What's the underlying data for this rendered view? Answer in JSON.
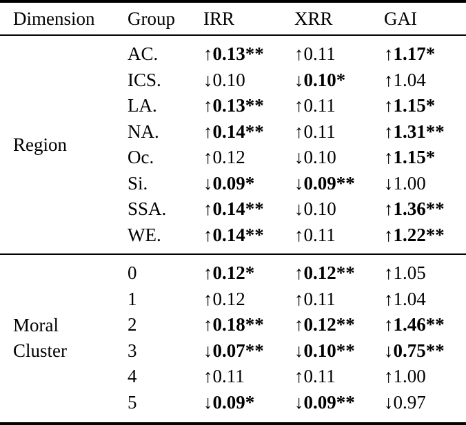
{
  "header": {
    "columns": [
      "Dimension",
      "Group",
      "IRR",
      "XRR",
      "GAI"
    ]
  },
  "sections": [
    {
      "dimension": "Region",
      "dimension_lines": {
        "0": "Region",
        "1": ""
      },
      "rows": [
        {
          "group": "AC.",
          "irr": {
            "arrow": "↑",
            "val": "0.13**",
            "weight": "bold"
          },
          "xrr": {
            "arrow": "↑",
            "val": "0.11",
            "weight": "normal"
          },
          "gai": {
            "arrow": "↑",
            "val": "1.17*",
            "weight": "bold"
          }
        },
        {
          "group": "ICS.",
          "irr": {
            "arrow": "↓",
            "val": "0.10",
            "weight": "normal"
          },
          "xrr": {
            "arrow": "↓",
            "val": "0.10*",
            "weight": "bold"
          },
          "gai": {
            "arrow": "↑",
            "val": "1.04",
            "weight": "normal"
          }
        },
        {
          "group": "LA.",
          "irr": {
            "arrow": "↑",
            "val": "0.13**",
            "weight": "bold"
          },
          "xrr": {
            "arrow": "↑",
            "val": "0.11",
            "weight": "normal"
          },
          "gai": {
            "arrow": "↑",
            "val": "1.15*",
            "weight": "bold"
          }
        },
        {
          "group": "NA.",
          "irr": {
            "arrow": "↑",
            "val": "0.14**",
            "weight": "bold"
          },
          "xrr": {
            "arrow": "↑",
            "val": "0.11",
            "weight": "normal"
          },
          "gai": {
            "arrow": "↑",
            "val": "1.31**",
            "weight": "bold"
          }
        },
        {
          "group": "Oc.",
          "irr": {
            "arrow": "↑",
            "val": "0.12",
            "weight": "normal"
          },
          "xrr": {
            "arrow": "↓",
            "val": "0.10",
            "weight": "normal"
          },
          "gai": {
            "arrow": "↑",
            "val": "1.15*",
            "weight": "bold"
          }
        },
        {
          "group": "Si.",
          "irr": {
            "arrow": "↓",
            "val": "0.09*",
            "weight": "bold"
          },
          "xrr": {
            "arrow": "↓",
            "val": "0.09**",
            "weight": "bold"
          },
          "gai": {
            "arrow": "↓",
            "val": "1.00",
            "weight": "normal"
          }
        },
        {
          "group": "SSA.",
          "irr": {
            "arrow": "↑",
            "val": "0.14**",
            "weight": "bold"
          },
          "xrr": {
            "arrow": "↓",
            "val": "0.10",
            "weight": "normal"
          },
          "gai": {
            "arrow": "↑",
            "val": "1.36**",
            "weight": "bold"
          }
        },
        {
          "group": "WE.",
          "irr": {
            "arrow": "↑",
            "val": "0.14**",
            "weight": "bold"
          },
          "xrr": {
            "arrow": "↑",
            "val": "0.11",
            "weight": "normal"
          },
          "gai": {
            "arrow": "↑",
            "val": "1.22**",
            "weight": "bold"
          }
        }
      ]
    },
    {
      "dimension": "Moral Cluster",
      "dimension_lines": {
        "0": "Moral",
        "1": "Cluster"
      },
      "rows": [
        {
          "group": "0",
          "irr": {
            "arrow": "↑",
            "val": "0.12*",
            "weight": "bold"
          },
          "xrr": {
            "arrow": "↑",
            "val": "0.12**",
            "weight": "bold"
          },
          "gai": {
            "arrow": "↑",
            "val": "1.05",
            "weight": "normal"
          }
        },
        {
          "group": "1",
          "irr": {
            "arrow": "↑",
            "val": "0.12",
            "weight": "normal"
          },
          "xrr": {
            "arrow": "↑",
            "val": "0.11",
            "weight": "normal"
          },
          "gai": {
            "arrow": "↑",
            "val": "1.04",
            "weight": "normal"
          }
        },
        {
          "group": "2",
          "irr": {
            "arrow": "↑",
            "val": "0.18**",
            "weight": "bold"
          },
          "xrr": {
            "arrow": "↑",
            "val": "0.12**",
            "weight": "bold"
          },
          "gai": {
            "arrow": "↑",
            "val": "1.46**",
            "weight": "bold"
          }
        },
        {
          "group": "3",
          "irr": {
            "arrow": "↓",
            "val": "0.07**",
            "weight": "bold"
          },
          "xrr": {
            "arrow": "↓",
            "val": "0.10**",
            "weight": "bold"
          },
          "gai": {
            "arrow": "↓",
            "val": "0.75**",
            "weight": "bold"
          }
        },
        {
          "group": "4",
          "irr": {
            "arrow": "↑",
            "val": "0.11",
            "weight": "normal"
          },
          "xrr": {
            "arrow": "↑",
            "val": "0.11",
            "weight": "normal"
          },
          "gai": {
            "arrow": "↑",
            "val": "1.00",
            "weight": "normal"
          }
        },
        {
          "group": "5",
          "irr": {
            "arrow": "↓",
            "val": "0.09*",
            "weight": "bold"
          },
          "xrr": {
            "arrow": "↓",
            "val": "0.09**",
            "weight": "bold"
          },
          "gai": {
            "arrow": "↓",
            "val": "0.97",
            "weight": "normal"
          }
        }
      ]
    }
  ],
  "colors": {
    "text": "#000000",
    "background": "#ffffff",
    "rule": "#000000"
  }
}
